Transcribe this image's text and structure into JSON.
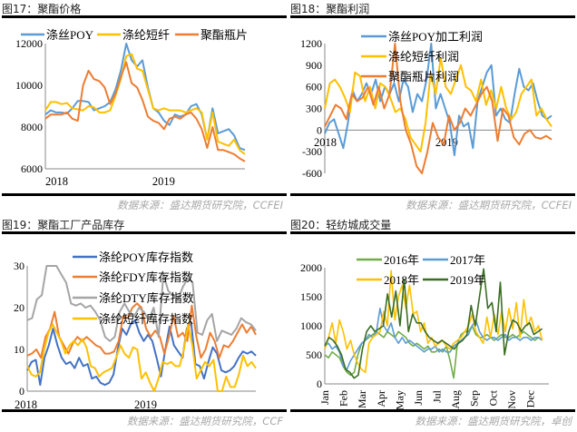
{
  "chart_data": [
    {
      "type": "line",
      "title": "图17：聚酯价格",
      "source": "数据来源：盛达期货研究院，CCFEI",
      "ylim": [
        6000,
        12000
      ],
      "yticks": [
        6000,
        8000,
        10000,
        12000
      ],
      "xlim": [
        0,
        22.4
      ],
      "xticks": [
        {
          "label": "2018",
          "x": 0
        },
        {
          "label": "2019",
          "x": 12
        }
      ],
      "series": [
        {
          "name": "涤丝POY",
          "color": "#5B9BD5",
          "values": [
            8600,
            8800,
            8700,
            8700,
            8650,
            8900,
            9250,
            9250,
            9200,
            8800,
            8900,
            9000,
            9200,
            9800,
            10700,
            12000,
            11200,
            10900,
            11200,
            9900,
            8900,
            8700,
            8300,
            8100,
            8600,
            8500,
            8600,
            9000,
            9100,
            8600,
            7400,
            8900,
            7700,
            7800,
            7900,
            7600,
            7000,
            6900
          ]
        },
        {
          "name": "涤纶短纤",
          "color": "#FFC000",
          "values": [
            8800,
            9200,
            9200,
            9100,
            9150,
            8900,
            8850,
            8800,
            9000,
            8950,
            8700,
            8700,
            8800,
            9500,
            10300,
            11400,
            11500,
            10800,
            10700,
            9800,
            8900,
            8800,
            8900,
            8800,
            8800,
            8800,
            8700,
            8800,
            8900,
            8700,
            7400,
            8700,
            7300,
            7200,
            7100,
            7400,
            6900,
            6700
          ]
        },
        {
          "name": "聚酯瓶片",
          "color": "#ED7D31",
          "values": [
            8400,
            8600,
            8600,
            8600,
            8700,
            8400,
            8300,
            10000,
            10700,
            10300,
            10200,
            9900,
            9100,
            9600,
            10400,
            11100,
            10100,
            9900,
            9300,
            8500,
            8300,
            8200,
            7900,
            8400,
            8500,
            8400,
            8600,
            8700,
            8400,
            7900,
            7000,
            8000,
            6900,
            6900,
            6800,
            6700,
            6500,
            6350
          ]
        }
      ]
    },
    {
      "type": "line",
      "title": "图18：聚酯利润",
      "source": "数据来源：盛达期货研究院，CCFEI",
      "ylim": [
        -600,
        1200
      ],
      "yticks": [
        -600,
        -300,
        0,
        300,
        600,
        900,
        1200
      ],
      "xlim": [
        0,
        22.4
      ],
      "xticks": [
        {
          "label": "2018",
          "x": 0
        },
        {
          "label": "2019",
          "x": 12
        }
      ],
      "series": [
        {
          "name": "涤丝POY加工利润",
          "color": "#5B9BD5",
          "values": [
            -50,
            100,
            150,
            -50,
            -250,
            100,
            550,
            400,
            500,
            650,
            500,
            700,
            400,
            600,
            500,
            650,
            400,
            700,
            600,
            250,
            500,
            400,
            700,
            1200,
            300,
            500,
            300,
            100,
            -350,
            200,
            50,
            100,
            -250,
            400,
            600,
            800,
            900,
            200,
            300,
            150,
            100,
            500,
            850,
            600,
            550,
            650,
            400,
            200,
            150,
            200
          ]
        },
        {
          "name": "涤纶短纤利润",
          "color": "#FFC000",
          "values": [
            300,
            650,
            700,
            600,
            450,
            250,
            800,
            750,
            400,
            600,
            300,
            650,
            600,
            450,
            250,
            300,
            150,
            -100,
            -200,
            -300,
            100,
            800,
            500,
            1000,
            600,
            500,
            700,
            900,
            600,
            550,
            400,
            700,
            350,
            550,
            300,
            600,
            300,
            150,
            250,
            500,
            600,
            700,
            200,
            300,
            150,
            50
          ]
        },
        {
          "name": "聚酯瓶片利润",
          "color": "#ED7D31",
          "values": [
            50,
            200,
            350,
            300,
            150,
            500,
            400,
            450,
            600,
            350,
            600,
            300,
            500,
            1200,
            400,
            0,
            -200,
            -500,
            -600,
            -300,
            100,
            -100,
            -200,
            200,
            0,
            100,
            300,
            200,
            350,
            500,
            600,
            400,
            -150,
            300,
            200,
            -100,
            -200,
            -50,
            0,
            -100,
            -120,
            -80,
            -130
          ]
        }
      ]
    },
    {
      "type": "line",
      "title": "图19：聚酯工厂产品库存",
      "source": "数据来源：盛达期货研究院，CCF",
      "ylim": [
        0,
        30
      ],
      "yticks": [
        0,
        10,
        20,
        30
      ],
      "xlim": [
        0,
        22.9
      ],
      "xticks": [
        {
          "label": "2018",
          "x": 0
        },
        {
          "label": "2019",
          "x": 12
        }
      ],
      "series": [
        {
          "name": "涤纶POY库存指数",
          "color": "#4472C4",
          "values": [
            5,
            7,
            7.5,
            1.5,
            8,
            11,
            15,
            11,
            8,
            6.5,
            7,
            5.5,
            8,
            6,
            6.5,
            3,
            3.5,
            2,
            1.5,
            2,
            4,
            10,
            15,
            13.5,
            16,
            17,
            14,
            12,
            13.5,
            12,
            8,
            3.5,
            10,
            15.5,
            11,
            9.5,
            8,
            15,
            16.5,
            6.5,
            6,
            3,
            7,
            10.5,
            9,
            5,
            4.5,
            5,
            6,
            8,
            9.5,
            9,
            9.5,
            8.5
          ]
        },
        {
          "name": "涤纶FDY库存指数",
          "color": "#ED7D31",
          "values": [
            8.5,
            9,
            10,
            8,
            13,
            15,
            19,
            13,
            11,
            9,
            11.5,
            13,
            12,
            13,
            12,
            11,
            10.5,
            9,
            9,
            9.5,
            12,
            18,
            17.5,
            20,
            21,
            20,
            15,
            13,
            14.5,
            13,
            9,
            13,
            18,
            13,
            14,
            12,
            20.5,
            13,
            8,
            10,
            14,
            12,
            8,
            11,
            10.5,
            12,
            14,
            16,
            14,
            15.5,
            13.5
          ]
        },
        {
          "name": "涤纶DTY库存指数",
          "color": "#A5A5A5",
          "values": [
            17,
            17.5,
            22,
            23,
            30,
            32,
            30,
            28,
            26,
            21,
            20.5,
            21,
            20,
            20.5,
            19,
            17,
            13,
            12,
            13,
            19,
            21,
            19,
            18,
            20,
            19,
            17,
            20,
            13,
            28,
            24,
            23,
            22,
            25,
            27,
            26,
            14,
            13.5,
            17,
            18.5,
            12,
            14.5,
            14,
            13.5,
            15,
            17.5,
            16.5,
            16,
            14.5
          ]
        },
        {
          "name": "涤纶短纤库存指数",
          "color": "#FFC000",
          "values": [
            6,
            4,
            3.5,
            4.5,
            10,
            14,
            16,
            14,
            12,
            9,
            11,
            12,
            11,
            12.5,
            10.5,
            6,
            5.5,
            3.5,
            4.5,
            5,
            5.5,
            8,
            11,
            9,
            8,
            10.5,
            10,
            3,
            4.5,
            2,
            0,
            3,
            7,
            6.5,
            7,
            6,
            6,
            10,
            16,
            11,
            3,
            5,
            7,
            6,
            7.5,
            0,
            0,
            3.5,
            1,
            1,
            4,
            8.5,
            6,
            7,
            5.5
          ]
        }
      ]
    },
    {
      "type": "line",
      "title": "图20：轻纺城成交量",
      "source": "数据来源：盛达期货研究院，卓创",
      "ylim": [
        0,
        2000
      ],
      "yticks": [
        0,
        500,
        1000,
        1500,
        2000
      ],
      "xlim": [
        0,
        12
      ],
      "xticks": [
        {
          "label": "Jan",
          "x": 0
        },
        {
          "label": "Feb",
          "x": 1
        },
        {
          "label": "Mar",
          "x": 2
        },
        {
          "label": "Apr",
          "x": 3
        },
        {
          "label": "May",
          "x": 4
        },
        {
          "label": "Jun",
          "x": 5
        },
        {
          "label": "Jul",
          "x": 6
        },
        {
          "label": "Aug",
          "x": 7
        },
        {
          "label": "Sep",
          "x": 8
        },
        {
          "label": "Oct",
          "x": 9
        },
        {
          "label": "Nov",
          "x": 10
        },
        {
          "label": "Dec",
          "x": 11
        }
      ],
      "series": [
        {
          "name": "2016年",
          "color": "#70AD47",
          "values": [
            500,
            450,
            550,
            500,
            450,
            300,
            200,
            150,
            200,
            500,
            700,
            750,
            800,
            850,
            900,
            850,
            800,
            900,
            850,
            800,
            900,
            850,
            800,
            700,
            650,
            700,
            650,
            600,
            650,
            550,
            550,
            600,
            550,
            650,
            400,
            100,
            700,
            850,
            900,
            900,
            1000,
            850,
            800,
            800,
            850,
            800,
            750,
            800,
            850,
            800,
            800,
            850,
            800,
            850,
            900,
            850,
            800,
            750,
            800,
            750
          ]
        },
        {
          "name": "2017年",
          "color": "#5B9BD5",
          "values": [
            650,
            700,
            600,
            650,
            550,
            300,
            250,
            400,
            500,
            600,
            700,
            750,
            850,
            800,
            900,
            1300,
            1000,
            900,
            1050,
            800,
            700,
            800,
            700,
            750,
            700,
            650,
            600,
            550,
            600,
            600,
            650,
            550,
            600,
            550,
            550,
            650,
            700,
            750,
            800,
            850,
            1000,
            1100,
            900,
            800,
            750,
            800,
            800,
            750,
            800,
            850,
            750,
            800,
            800,
            750,
            800,
            800,
            750,
            800,
            800,
            750
          ]
        },
        {
          "name": "2018年",
          "color": "#FFC000",
          "values": [
            600,
            800,
            1050,
            700,
            1100,
            900,
            600,
            750,
            500,
            350,
            250,
            200,
            700,
            800,
            850,
            900,
            1250,
            1000,
            1950,
            1100,
            1500,
            1700,
            1300,
            1700,
            1200,
            1250,
            900,
            1050,
            700,
            800,
            650,
            700,
            750,
            650,
            600,
            700,
            750,
            800,
            900,
            1000,
            1200,
            900,
            800,
            700,
            1150,
            800,
            1200,
            850,
            1250,
            900,
            1300,
            950,
            1400,
            800,
            1450,
            1000,
            1150,
            900,
            1000,
            750
          ]
        },
        {
          "name": "2019年",
          "color": "#3B6E22",
          "values": [
            650,
            800,
            750,
            650,
            500,
            250,
            200,
            100,
            150,
            600,
            900,
            1000,
            900,
            950,
            1000,
            1550,
            1150,
            1600,
            1000,
            1800,
            900,
            1200,
            1050,
            1050,
            900,
            800,
            750,
            700,
            750,
            700,
            650,
            600,
            700,
            750,
            850,
            1350,
            1000,
            1500,
            1980,
            1300,
            1400,
            900,
            1750,
            500,
            900,
            1100,
            1050,
            900,
            1000,
            1050,
            850,
            900,
            950
          ]
        }
      ]
    }
  ]
}
